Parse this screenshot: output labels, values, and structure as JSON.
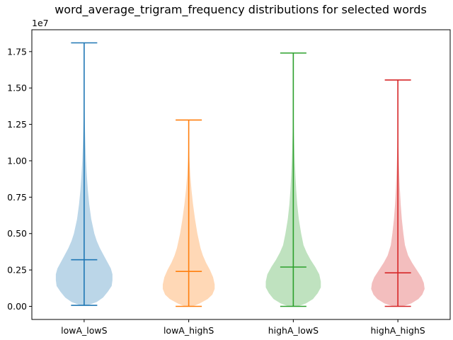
{
  "chart_data": {
    "type": "violin",
    "title": "word_average_trigram_frequency distributions for selected words",
    "xlabel": "",
    "ylabel": "",
    "y_scale_label": "1e7",
    "ylim": [
      -0.09,
      1.9
    ],
    "y_ticks": [
      0.0,
      0.25,
      0.5,
      0.75,
      1.0,
      1.25,
      1.5,
      1.75
    ],
    "y_tick_labels": [
      "0.00",
      "0.25",
      "0.50",
      "0.75",
      "1.00",
      "1.25",
      "1.50",
      "1.75"
    ],
    "grid": false,
    "series": [
      {
        "category": "lowA_lowS",
        "color": "#1f77b4",
        "min": 0.007,
        "max": 1.81,
        "mean": 0.32,
        "density": [
          [
            0.01,
            0.06
          ],
          [
            0.03,
            0.16
          ],
          [
            0.06,
            0.24
          ],
          [
            0.1,
            0.3
          ],
          [
            0.14,
            0.35
          ],
          [
            0.18,
            0.36
          ],
          [
            0.22,
            0.36
          ],
          [
            0.26,
            0.34
          ],
          [
            0.3,
            0.3
          ],
          [
            0.35,
            0.25
          ],
          [
            0.4,
            0.2
          ],
          [
            0.45,
            0.16
          ],
          [
            0.5,
            0.13
          ],
          [
            0.6,
            0.09
          ],
          [
            0.7,
            0.065
          ],
          [
            0.8,
            0.047
          ],
          [
            0.9,
            0.034
          ],
          [
            1.0,
            0.024
          ],
          [
            1.1,
            0.017
          ],
          [
            1.2,
            0.011
          ],
          [
            1.3,
            0.007
          ],
          [
            1.4,
            0.004
          ],
          [
            1.5,
            0.002
          ],
          [
            1.81,
            0.0
          ]
        ]
      },
      {
        "category": "lowA_highS",
        "color": "#ff7f0e",
        "min": 0.0,
        "max": 1.28,
        "mean": 0.24,
        "density": [
          [
            0.0,
            0.05
          ],
          [
            0.02,
            0.14
          ],
          [
            0.05,
            0.24
          ],
          [
            0.08,
            0.3
          ],
          [
            0.12,
            0.33
          ],
          [
            0.15,
            0.33
          ],
          [
            0.2,
            0.31
          ],
          [
            0.25,
            0.27
          ],
          [
            0.3,
            0.22
          ],
          [
            0.35,
            0.18
          ],
          [
            0.4,
            0.15
          ],
          [
            0.5,
            0.11
          ],
          [
            0.6,
            0.08
          ],
          [
            0.7,
            0.055
          ],
          [
            0.8,
            0.035
          ],
          [
            0.9,
            0.02
          ],
          [
            1.0,
            0.01
          ],
          [
            1.1,
            0.004
          ],
          [
            1.28,
            0.0
          ]
        ]
      },
      {
        "category": "highA_lowS",
        "color": "#2ca02c",
        "min": 0.0,
        "max": 1.74,
        "mean": 0.27,
        "density": [
          [
            0.0,
            0.06
          ],
          [
            0.02,
            0.16
          ],
          [
            0.05,
            0.25
          ],
          [
            0.09,
            0.31
          ],
          [
            0.13,
            0.35
          ],
          [
            0.17,
            0.35
          ],
          [
            0.22,
            0.33
          ],
          [
            0.27,
            0.28
          ],
          [
            0.32,
            0.22
          ],
          [
            0.37,
            0.17
          ],
          [
            0.42,
            0.13
          ],
          [
            0.5,
            0.1
          ],
          [
            0.6,
            0.07
          ],
          [
            0.7,
            0.05
          ],
          [
            0.8,
            0.037
          ],
          [
            0.9,
            0.027
          ],
          [
            1.0,
            0.019
          ],
          [
            1.1,
            0.013
          ],
          [
            1.2,
            0.008
          ],
          [
            1.3,
            0.005
          ],
          [
            1.45,
            0.002
          ],
          [
            1.74,
            0.0
          ]
        ]
      },
      {
        "category": "highA_highS",
        "color": "#d62728",
        "min": 0.0,
        "max": 1.555,
        "mean": 0.23,
        "density": [
          [
            0.0,
            0.06
          ],
          [
            0.02,
            0.17
          ],
          [
            0.05,
            0.26
          ],
          [
            0.08,
            0.31
          ],
          [
            0.12,
            0.34
          ],
          [
            0.16,
            0.33
          ],
          [
            0.2,
            0.3
          ],
          [
            0.25,
            0.24
          ],
          [
            0.3,
            0.18
          ],
          [
            0.35,
            0.13
          ],
          [
            0.42,
            0.09
          ],
          [
            0.5,
            0.07
          ],
          [
            0.6,
            0.05
          ],
          [
            0.7,
            0.036
          ],
          [
            0.8,
            0.026
          ],
          [
            0.9,
            0.018
          ],
          [
            1.0,
            0.012
          ],
          [
            1.1,
            0.007
          ],
          [
            1.2,
            0.004
          ],
          [
            1.3,
            0.002
          ],
          [
            1.555,
            0.0
          ]
        ]
      }
    ]
  }
}
